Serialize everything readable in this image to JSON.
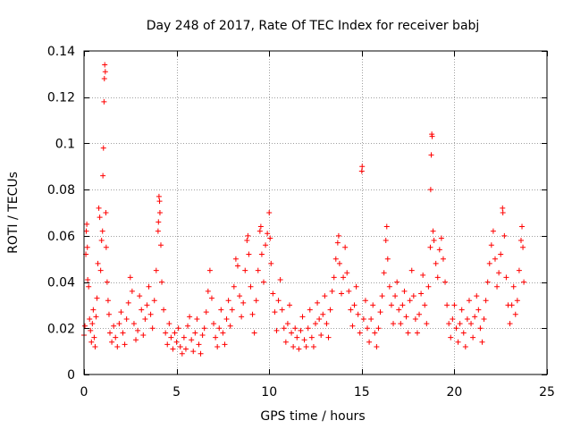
{
  "chart_data": {
    "type": "scatter",
    "title": "Day 248 of 2017, Rate Of TEC Index for receiver babj",
    "xlabel": "GPS time / hours",
    "ylabel": "ROTI / TECUs",
    "xlim": [
      0,
      25
    ],
    "ylim": [
      0,
      0.14
    ],
    "x_ticks": [
      0,
      5,
      10,
      15,
      20,
      25
    ],
    "x_tick_labels": [
      "0",
      "5",
      "10",
      "15",
      "20",
      "25"
    ],
    "y_ticks": [
      0,
      0.02,
      0.04,
      0.06,
      0.08,
      0.1,
      0.12,
      0.14
    ],
    "y_tick_labels": [
      "0",
      "0.02",
      "0.04",
      "0.06",
      "0.08",
      "0.1",
      "0.12",
      "0.14"
    ],
    "grid": true,
    "legend": "none",
    "marker": "plus",
    "color": "#ff0000",
    "series": [
      {
        "points": [
          [
            0.0,
            0.017
          ],
          [
            0.05,
            0.021
          ],
          [
            0.1,
            0.052
          ],
          [
            0.12,
            0.062
          ],
          [
            0.15,
            0.065
          ],
          [
            0.18,
            0.055
          ],
          [
            0.2,
            0.041
          ],
          [
            0.25,
            0.038
          ],
          [
            0.3,
            0.024
          ],
          [
            0.35,
            0.019
          ],
          [
            0.4,
            0.014
          ],
          [
            0.45,
            0.022
          ],
          [
            0.5,
            0.028
          ],
          [
            0.55,
            0.016
          ],
          [
            0.6,
            0.012
          ],
          [
            0.65,
            0.025
          ],
          [
            0.7,
            0.033
          ],
          [
            0.75,
            0.048
          ],
          [
            0.8,
            0.072
          ],
          [
            0.85,
            0.068
          ],
          [
            0.9,
            0.045
          ],
          [
            0.95,
            0.058
          ],
          [
            1.0,
            0.062
          ],
          [
            1.02,
            0.086
          ],
          [
            1.05,
            0.098
          ],
          [
            1.08,
            0.118
          ],
          [
            1.1,
            0.128
          ],
          [
            1.12,
            0.134
          ],
          [
            1.15,
            0.131
          ],
          [
            1.18,
            0.07
          ],
          [
            1.2,
            0.055
          ],
          [
            1.25,
            0.04
          ],
          [
            1.3,
            0.032
          ],
          [
            1.35,
            0.026
          ],
          [
            1.4,
            0.018
          ],
          [
            1.5,
            0.014
          ],
          [
            1.6,
            0.021
          ],
          [
            1.7,
            0.016
          ],
          [
            1.8,
            0.012
          ],
          [
            1.9,
            0.022
          ],
          [
            2.0,
            0.027
          ],
          [
            2.1,
            0.018
          ],
          [
            2.2,
            0.013
          ],
          [
            2.3,
            0.024
          ],
          [
            2.4,
            0.031
          ],
          [
            2.5,
            0.042
          ],
          [
            2.6,
            0.036
          ],
          [
            2.7,
            0.022
          ],
          [
            2.8,
            0.015
          ],
          [
            2.9,
            0.019
          ],
          [
            3.0,
            0.034
          ],
          [
            3.1,
            0.028
          ],
          [
            3.2,
            0.017
          ],
          [
            3.3,
            0.024
          ],
          [
            3.4,
            0.03
          ],
          [
            3.5,
            0.038
          ],
          [
            3.6,
            0.026
          ],
          [
            3.7,
            0.02
          ],
          [
            3.8,
            0.032
          ],
          [
            3.9,
            0.045
          ],
          [
            4.0,
            0.062
          ],
          [
            4.02,
            0.066
          ],
          [
            4.05,
            0.077
          ],
          [
            4.08,
            0.075
          ],
          [
            4.1,
            0.07
          ],
          [
            4.15,
            0.056
          ],
          [
            4.2,
            0.04
          ],
          [
            4.3,
            0.028
          ],
          [
            4.4,
            0.018
          ],
          [
            4.5,
            0.013
          ],
          [
            4.6,
            0.022
          ],
          [
            4.7,
            0.016
          ],
          [
            4.8,
            0.011
          ],
          [
            4.9,
            0.018
          ],
          [
            5.0,
            0.014
          ],
          [
            5.1,
            0.02
          ],
          [
            5.2,
            0.012
          ],
          [
            5.3,
            0.009
          ],
          [
            5.4,
            0.016
          ],
          [
            5.5,
            0.011
          ],
          [
            5.6,
            0.021
          ],
          [
            5.7,
            0.025
          ],
          [
            5.8,
            0.015
          ],
          [
            5.9,
            0.01
          ],
          [
            6.0,
            0.018
          ],
          [
            6.1,
            0.024
          ],
          [
            6.2,
            0.013
          ],
          [
            6.3,
            0.009
          ],
          [
            6.4,
            0.017
          ],
          [
            6.5,
            0.02
          ],
          [
            6.6,
            0.027
          ],
          [
            6.7,
            0.036
          ],
          [
            6.8,
            0.045
          ],
          [
            6.9,
            0.033
          ],
          [
            7.0,
            0.022
          ],
          [
            7.1,
            0.016
          ],
          [
            7.2,
            0.012
          ],
          [
            7.3,
            0.02
          ],
          [
            7.4,
            0.028
          ],
          [
            7.5,
            0.018
          ],
          [
            7.6,
            0.013
          ],
          [
            7.7,
            0.024
          ],
          [
            7.8,
            0.032
          ],
          [
            7.9,
            0.021
          ],
          [
            8.0,
            0.028
          ],
          [
            8.1,
            0.038
          ],
          [
            8.2,
            0.05
          ],
          [
            8.3,
            0.047
          ],
          [
            8.4,
            0.034
          ],
          [
            8.5,
            0.025
          ],
          [
            8.6,
            0.031
          ],
          [
            8.7,
            0.045
          ],
          [
            8.8,
            0.058
          ],
          [
            8.85,
            0.06
          ],
          [
            8.9,
            0.052
          ],
          [
            9.0,
            0.038
          ],
          [
            9.1,
            0.026
          ],
          [
            9.2,
            0.018
          ],
          [
            9.3,
            0.032
          ],
          [
            9.4,
            0.045
          ],
          [
            9.5,
            0.062
          ],
          [
            9.55,
            0.064
          ],
          [
            9.6,
            0.052
          ],
          [
            9.7,
            0.04
          ],
          [
            9.8,
            0.056
          ],
          [
            9.9,
            0.061
          ],
          [
            10.0,
            0.07
          ],
          [
            10.05,
            0.059
          ],
          [
            10.1,
            0.048
          ],
          [
            10.2,
            0.035
          ],
          [
            10.3,
            0.027
          ],
          [
            10.4,
            0.019
          ],
          [
            10.5,
            0.032
          ],
          [
            10.6,
            0.041
          ],
          [
            10.7,
            0.028
          ],
          [
            10.8,
            0.02
          ],
          [
            10.9,
            0.014
          ],
          [
            11.0,
            0.022
          ],
          [
            11.1,
            0.03
          ],
          [
            11.2,
            0.018
          ],
          [
            11.3,
            0.012
          ],
          [
            11.4,
            0.02
          ],
          [
            11.5,
            0.016
          ],
          [
            11.6,
            0.011
          ],
          [
            11.7,
            0.019
          ],
          [
            11.8,
            0.025
          ],
          [
            11.9,
            0.015
          ],
          [
            12.0,
            0.012
          ],
          [
            12.1,
            0.02
          ],
          [
            12.2,
            0.028
          ],
          [
            12.3,
            0.016
          ],
          [
            12.4,
            0.012
          ],
          [
            12.5,
            0.022
          ],
          [
            12.6,
            0.031
          ],
          [
            12.7,
            0.024
          ],
          [
            12.8,
            0.017
          ],
          [
            12.9,
            0.026
          ],
          [
            13.0,
            0.034
          ],
          [
            13.1,
            0.022
          ],
          [
            13.2,
            0.016
          ],
          [
            13.3,
            0.028
          ],
          [
            13.4,
            0.036
          ],
          [
            13.5,
            0.042
          ],
          [
            13.6,
            0.05
          ],
          [
            13.7,
            0.057
          ],
          [
            13.75,
            0.06
          ],
          [
            13.8,
            0.048
          ],
          [
            13.9,
            0.035
          ],
          [
            14.0,
            0.042
          ],
          [
            14.1,
            0.055
          ],
          [
            14.2,
            0.044
          ],
          [
            14.3,
            0.036
          ],
          [
            14.4,
            0.028
          ],
          [
            14.5,
            0.021
          ],
          [
            14.6,
            0.03
          ],
          [
            14.7,
            0.038
          ],
          [
            14.8,
            0.026
          ],
          [
            14.9,
            0.018
          ],
          [
            15.0,
            0.088
          ],
          [
            15.02,
            0.09
          ],
          [
            15.1,
            0.024
          ],
          [
            15.2,
            0.032
          ],
          [
            15.3,
            0.02
          ],
          [
            15.4,
            0.014
          ],
          [
            15.5,
            0.024
          ],
          [
            15.6,
            0.03
          ],
          [
            15.7,
            0.018
          ],
          [
            15.8,
            0.012
          ],
          [
            15.9,
            0.02
          ],
          [
            16.0,
            0.027
          ],
          [
            16.1,
            0.034
          ],
          [
            16.2,
            0.044
          ],
          [
            16.3,
            0.058
          ],
          [
            16.35,
            0.064
          ],
          [
            16.4,
            0.05
          ],
          [
            16.5,
            0.038
          ],
          [
            16.6,
            0.03
          ],
          [
            16.7,
            0.022
          ],
          [
            16.8,
            0.034
          ],
          [
            16.9,
            0.04
          ],
          [
            17.0,
            0.028
          ],
          [
            17.1,
            0.022
          ],
          [
            17.2,
            0.03
          ],
          [
            17.3,
            0.036
          ],
          [
            17.4,
            0.025
          ],
          [
            17.5,
            0.018
          ],
          [
            17.6,
            0.032
          ],
          [
            17.7,
            0.045
          ],
          [
            17.8,
            0.034
          ],
          [
            17.9,
            0.024
          ],
          [
            18.0,
            0.018
          ],
          [
            18.1,
            0.026
          ],
          [
            18.2,
            0.035
          ],
          [
            18.3,
            0.043
          ],
          [
            18.4,
            0.03
          ],
          [
            18.5,
            0.022
          ],
          [
            18.6,
            0.038
          ],
          [
            18.7,
            0.055
          ],
          [
            18.72,
            0.08
          ],
          [
            18.75,
            0.095
          ],
          [
            18.78,
            0.104
          ],
          [
            18.8,
            0.103
          ],
          [
            18.85,
            0.062
          ],
          [
            18.9,
            0.058
          ],
          [
            19.0,
            0.048
          ],
          [
            19.1,
            0.042
          ],
          [
            19.2,
            0.054
          ],
          [
            19.3,
            0.059
          ],
          [
            19.4,
            0.05
          ],
          [
            19.5,
            0.04
          ],
          [
            19.6,
            0.03
          ],
          [
            19.7,
            0.022
          ],
          [
            19.8,
            0.016
          ],
          [
            19.9,
            0.024
          ],
          [
            20.0,
            0.03
          ],
          [
            20.1,
            0.02
          ],
          [
            20.2,
            0.014
          ],
          [
            20.3,
            0.022
          ],
          [
            20.4,
            0.028
          ],
          [
            20.5,
            0.018
          ],
          [
            20.6,
            0.012
          ],
          [
            20.7,
            0.024
          ],
          [
            20.8,
            0.032
          ],
          [
            20.9,
            0.022
          ],
          [
            21.0,
            0.016
          ],
          [
            21.1,
            0.025
          ],
          [
            21.2,
            0.034
          ],
          [
            21.3,
            0.028
          ],
          [
            21.4,
            0.02
          ],
          [
            21.5,
            0.014
          ],
          [
            21.6,
            0.024
          ],
          [
            21.7,
            0.032
          ],
          [
            21.8,
            0.04
          ],
          [
            21.9,
            0.048
          ],
          [
            22.0,
            0.056
          ],
          [
            22.1,
            0.062
          ],
          [
            22.2,
            0.05
          ],
          [
            22.3,
            0.038
          ],
          [
            22.4,
            0.044
          ],
          [
            22.5,
            0.052
          ],
          [
            22.6,
            0.072
          ],
          [
            22.62,
            0.07
          ],
          [
            22.7,
            0.06
          ],
          [
            22.8,
            0.042
          ],
          [
            22.9,
            0.03
          ],
          [
            23.0,
            0.022
          ],
          [
            23.1,
            0.03
          ],
          [
            23.2,
            0.038
          ],
          [
            23.3,
            0.026
          ],
          [
            23.4,
            0.032
          ],
          [
            23.5,
            0.045
          ],
          [
            23.6,
            0.058
          ],
          [
            23.65,
            0.064
          ],
          [
            23.7,
            0.055
          ],
          [
            23.75,
            0.04
          ]
        ]
      }
    ]
  }
}
